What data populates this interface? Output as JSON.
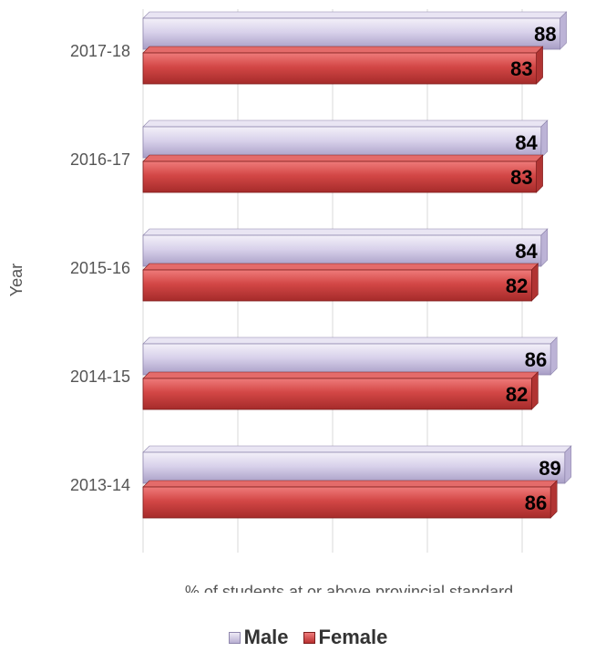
{
  "chart_data": {
    "type": "bar",
    "orientation": "horizontal",
    "categories": [
      "2013-14",
      "2014-15",
      "2015-16",
      "2016-17",
      "2017-18"
    ],
    "series": [
      {
        "name": "Male",
        "values": [
          89,
          86,
          84,
          84,
          88
        ],
        "color": "#cfc8e4"
      },
      {
        "name": "Female",
        "values": [
          86,
          82,
          82,
          83,
          83
        ],
        "color": "#d64a49"
      }
    ],
    "title": "",
    "xlabel": "% of students at or above provincial standard",
    "ylabel": "Year",
    "xlim": [
      0,
      100
    ],
    "grid": "vertical",
    "legend": "bottom",
    "data_labels": true
  },
  "legend": {
    "male_label": "Male",
    "female_label": "Female"
  }
}
